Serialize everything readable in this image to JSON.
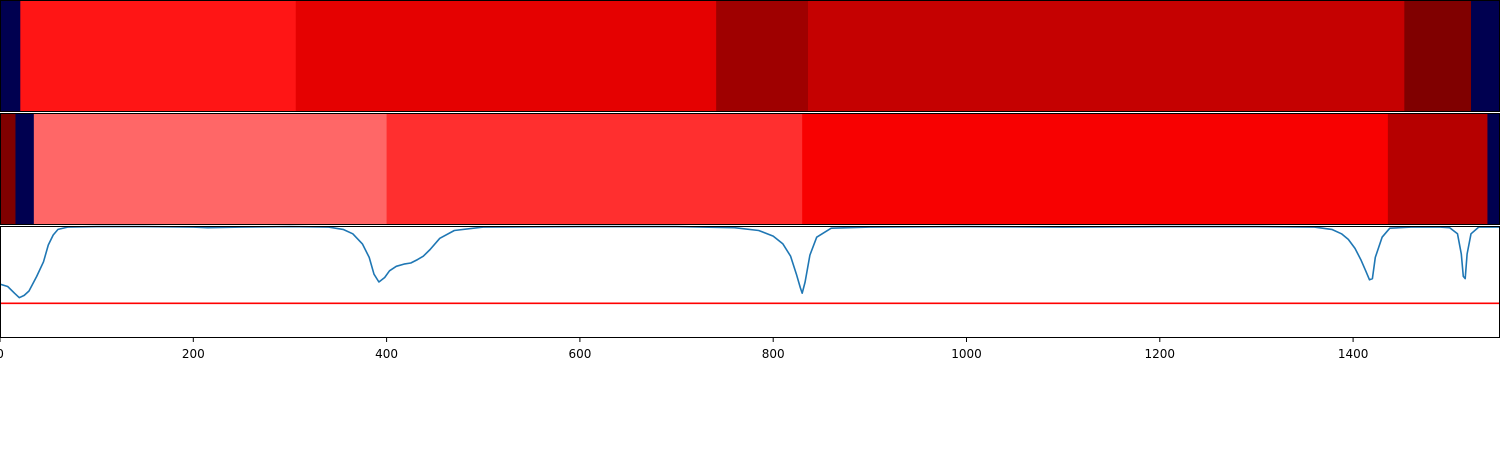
{
  "chart_data": [
    {
      "type": "heatmap",
      "title": "",
      "xlim": [
        0,
        1552
      ],
      "segments": [
        {
          "start": 0,
          "end": 21,
          "color": "#000050"
        },
        {
          "start": 21,
          "end": 306,
          "color": "#ff1515"
        },
        {
          "start": 306,
          "end": 741,
          "color": "#e50101"
        },
        {
          "start": 741,
          "end": 836,
          "color": "#9f0000"
        },
        {
          "start": 836,
          "end": 1453,
          "color": "#c50101"
        },
        {
          "start": 1453,
          "end": 1522,
          "color": "#800000"
        },
        {
          "start": 1522,
          "end": 1552,
          "color": "#000050"
        }
      ]
    },
    {
      "type": "heatmap",
      "title": "",
      "xlim": [
        0,
        1552
      ],
      "segments": [
        {
          "start": 0,
          "end": 16,
          "color": "#800000"
        },
        {
          "start": 16,
          "end": 35,
          "color": "#000050"
        },
        {
          "start": 35,
          "end": 400,
          "color": "#ff6767"
        },
        {
          "start": 400,
          "end": 830,
          "color": "#ff2f2f"
        },
        {
          "start": 830,
          "end": 1436,
          "color": "#f80101"
        },
        {
          "start": 1436,
          "end": 1539,
          "color": "#b60000"
        },
        {
          "start": 1539,
          "end": 1552,
          "color": "#000050"
        }
      ]
    },
    {
      "type": "line",
      "title": "",
      "xlabel": "",
      "ylabel": "",
      "xlim": [
        0,
        1552
      ],
      "ylim": [
        0,
        1
      ],
      "xticks": [
        0,
        200,
        400,
        600,
        800,
        1000,
        1200,
        1400
      ],
      "tick_labels": [
        "0",
        "200",
        "400",
        "600",
        "800",
        "1000",
        "1200",
        "1400"
      ],
      "threshold": {
        "y": 0.31,
        "color": "#ff0000"
      },
      "series": [
        {
          "color": "#1f77b4",
          "x": [
            0,
            8,
            15,
            20,
            25,
            30,
            38,
            45,
            50,
            55,
            60,
            70,
            100,
            150,
            200,
            215,
            250,
            300,
            340,
            355,
            365,
            375,
            382,
            387,
            392,
            398,
            403,
            410,
            418,
            425,
            432,
            438,
            445,
            455,
            470,
            500,
            600,
            700,
            760,
            785,
            800,
            810,
            818,
            824,
            828,
            830,
            833,
            838,
            845,
            860,
            900,
            1000,
            1100,
            1200,
            1300,
            1360,
            1378,
            1388,
            1395,
            1402,
            1408,
            1413,
            1417,
            1420,
            1423,
            1430,
            1438,
            1460,
            1490,
            1500,
            1508,
            1512,
            1514,
            1516,
            1518,
            1522,
            1530,
            1552
          ],
          "y": [
            0.48,
            0.46,
            0.4,
            0.36,
            0.38,
            0.42,
            0.55,
            0.68,
            0.83,
            0.92,
            0.97,
            0.99,
            0.995,
            0.995,
            0.99,
            0.985,
            0.99,
            0.995,
            0.99,
            0.97,
            0.93,
            0.84,
            0.72,
            0.57,
            0.5,
            0.54,
            0.6,
            0.64,
            0.66,
            0.67,
            0.7,
            0.73,
            0.79,
            0.89,
            0.96,
            0.99,
            0.995,
            0.995,
            0.985,
            0.96,
            0.91,
            0.84,
            0.73,
            0.57,
            0.45,
            0.4,
            0.5,
            0.74,
            0.9,
            0.98,
            0.99,
            0.995,
            0.99,
            0.995,
            0.995,
            0.99,
            0.97,
            0.93,
            0.88,
            0.8,
            0.7,
            0.6,
            0.52,
            0.53,
            0.72,
            0.9,
            0.98,
            0.99,
            0.99,
            0.985,
            0.93,
            0.75,
            0.55,
            0.53,
            0.75,
            0.93,
            0.99,
            0.99
          ]
        }
      ]
    }
  ]
}
